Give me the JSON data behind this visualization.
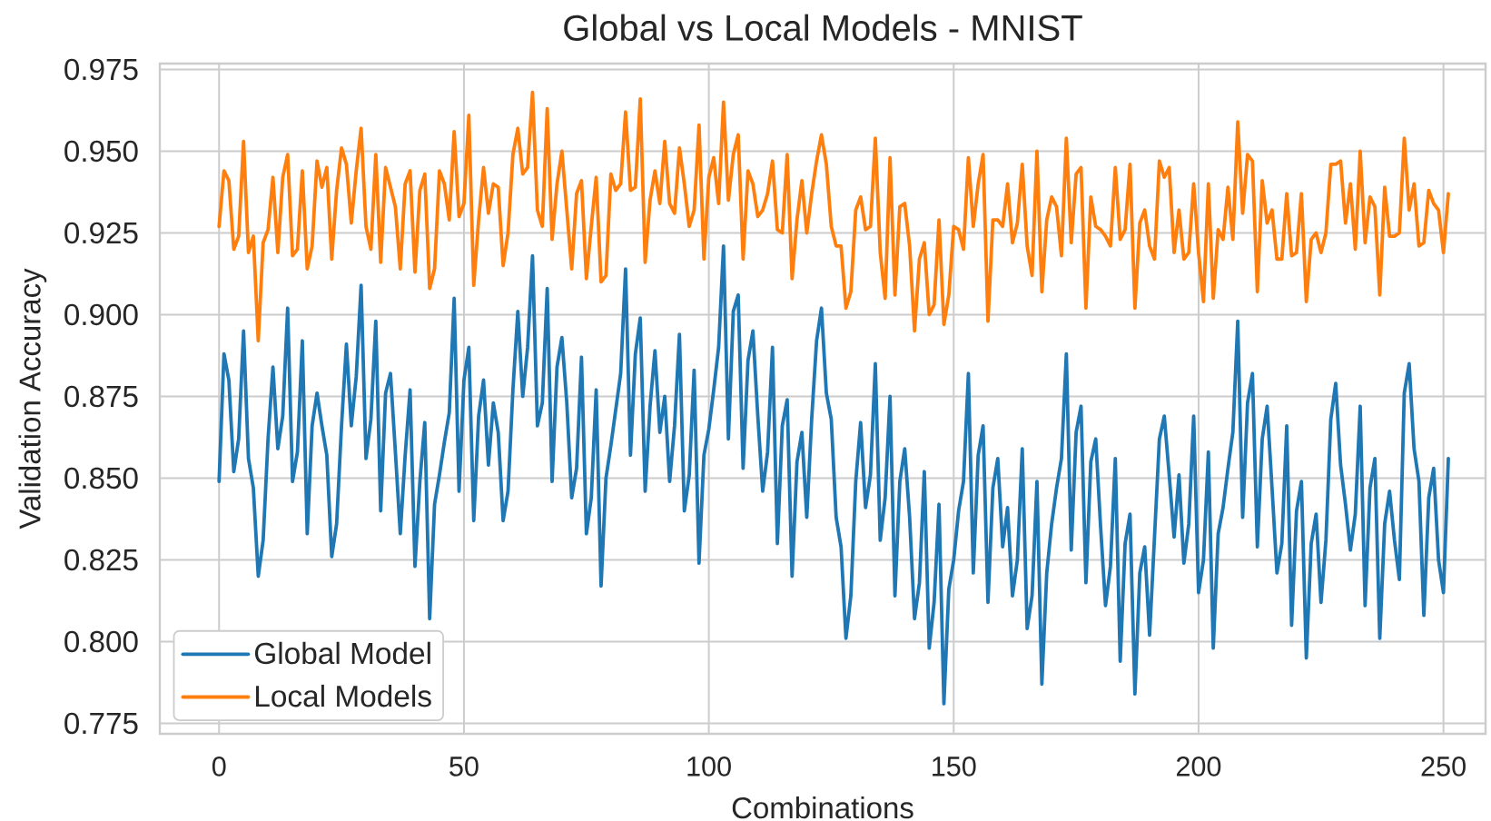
{
  "chart_data": {
    "type": "line",
    "title": "Global vs Local Models - MNIST",
    "xlabel": "Combinations",
    "ylabel": "Validation Accuracy",
    "x": [
      0,
      1,
      2,
      3,
      4,
      5,
      6,
      7,
      8,
      9,
      10,
      11,
      12,
      13,
      14,
      15,
      16,
      17,
      18,
      19,
      20,
      21,
      22,
      23,
      24,
      25,
      26,
      27,
      28,
      29,
      30,
      31,
      32,
      33,
      34,
      35,
      36,
      37,
      38,
      39,
      40,
      41,
      42,
      43,
      44,
      45,
      46,
      47,
      48,
      49,
      50,
      51,
      52,
      53,
      54,
      55,
      56,
      57,
      58,
      59,
      60,
      61,
      62,
      63,
      64,
      65,
      66,
      67,
      68,
      69,
      70,
      71,
      72,
      73,
      74,
      75,
      76,
      77,
      78,
      79,
      80,
      81,
      82,
      83,
      84,
      85,
      86,
      87,
      88,
      89,
      90,
      91,
      92,
      93,
      94,
      95,
      96,
      97,
      98,
      99,
      100,
      101,
      102,
      103,
      104,
      105,
      106,
      107,
      108,
      109,
      110,
      111,
      112,
      113,
      114,
      115,
      116,
      117,
      118,
      119,
      120,
      121,
      122,
      123,
      124,
      125,
      126,
      127,
      128,
      129,
      130,
      131,
      132,
      133,
      134,
      135,
      136,
      137,
      138,
      139,
      140,
      141,
      142,
      143,
      144,
      145,
      146,
      147,
      148,
      149,
      150,
      151,
      152,
      153,
      154,
      155,
      156,
      157,
      158,
      159,
      160,
      161,
      162,
      163,
      164,
      165,
      166,
      167,
      168,
      169,
      170,
      171,
      172,
      173,
      174,
      175,
      176,
      177,
      178,
      179,
      180,
      181,
      182,
      183,
      184,
      185,
      186,
      187,
      188,
      189,
      190,
      191,
      192,
      193,
      194,
      195,
      196,
      197,
      198,
      199,
      200,
      201,
      202,
      203,
      204,
      205,
      206,
      207,
      208,
      209,
      210,
      211,
      212,
      213,
      214,
      215,
      216,
      217,
      218,
      219,
      220,
      221,
      222,
      223,
      224,
      225,
      226,
      227,
      228,
      229,
      230,
      231,
      232,
      233,
      234,
      235,
      236,
      237,
      238,
      239,
      240,
      241,
      242,
      243,
      244,
      245,
      246,
      247,
      248,
      249,
      250,
      251
    ],
    "series": [
      {
        "name": "Global Model",
        "color": "#1f77b4",
        "values": [
          0.849,
          0.888,
          0.88,
          0.852,
          0.862,
          0.895,
          0.856,
          0.847,
          0.82,
          0.831,
          0.862,
          0.884,
          0.859,
          0.869,
          0.902,
          0.849,
          0.858,
          0.892,
          0.833,
          0.866,
          0.876,
          0.866,
          0.857,
          0.826,
          0.836,
          0.866,
          0.891,
          0.866,
          0.881,
          0.909,
          0.856,
          0.868,
          0.898,
          0.84,
          0.876,
          0.882,
          0.858,
          0.833,
          0.857,
          0.877,
          0.823,
          0.849,
          0.867,
          0.807,
          0.842,
          0.851,
          0.861,
          0.87,
          0.905,
          0.846,
          0.88,
          0.89,
          0.837,
          0.869,
          0.88,
          0.854,
          0.873,
          0.864,
          0.837,
          0.846,
          0.877,
          0.901,
          0.875,
          0.89,
          0.918,
          0.866,
          0.873,
          0.908,
          0.849,
          0.884,
          0.893,
          0.873,
          0.844,
          0.853,
          0.887,
          0.833,
          0.844,
          0.877,
          0.817,
          0.85,
          0.86,
          0.871,
          0.882,
          0.914,
          0.857,
          0.888,
          0.899,
          0.846,
          0.872,
          0.889,
          0.864,
          0.875,
          0.849,
          0.866,
          0.894,
          0.84,
          0.851,
          0.883,
          0.824,
          0.857,
          0.865,
          0.877,
          0.89,
          0.921,
          0.862,
          0.901,
          0.906,
          0.853,
          0.886,
          0.895,
          0.869,
          0.846,
          0.858,
          0.89,
          0.83,
          0.866,
          0.874,
          0.82,
          0.855,
          0.864,
          0.838,
          0.868,
          0.892,
          0.902,
          0.876,
          0.868,
          0.838,
          0.829,
          0.801,
          0.814,
          0.849,
          0.867,
          0.841,
          0.851,
          0.885,
          0.831,
          0.844,
          0.875,
          0.814,
          0.849,
          0.859,
          0.838,
          0.807,
          0.818,
          0.852,
          0.798,
          0.812,
          0.842,
          0.781,
          0.816,
          0.825,
          0.84,
          0.849,
          0.882,
          0.821,
          0.857,
          0.866,
          0.812,
          0.847,
          0.856,
          0.829,
          0.841,
          0.814,
          0.825,
          0.859,
          0.804,
          0.814,
          0.849,
          0.787,
          0.821,
          0.836,
          0.847,
          0.856,
          0.888,
          0.828,
          0.864,
          0.872,
          0.818,
          0.855,
          0.862,
          0.835,
          0.811,
          0.823,
          0.856,
          0.794,
          0.83,
          0.839,
          0.784,
          0.821,
          0.829,
          0.802,
          0.832,
          0.862,
          0.869,
          0.851,
          0.832,
          0.851,
          0.824,
          0.836,
          0.869,
          0.815,
          0.825,
          0.858,
          0.798,
          0.833,
          0.841,
          0.853,
          0.864,
          0.898,
          0.838,
          0.873,
          0.882,
          0.829,
          0.862,
          0.872,
          0.847,
          0.821,
          0.83,
          0.866,
          0.805,
          0.84,
          0.849,
          0.795,
          0.83,
          0.839,
          0.812,
          0.831,
          0.868,
          0.879,
          0.854,
          0.842,
          0.828,
          0.839,
          0.872,
          0.811,
          0.847,
          0.856,
          0.801,
          0.836,
          0.846,
          0.831,
          0.819,
          0.876,
          0.885,
          0.859,
          0.849,
          0.808,
          0.844,
          0.853,
          0.825,
          0.815,
          0.856
        ]
      },
      {
        "name": "Local Models",
        "color": "#ff7f0e",
        "values": [
          0.927,
          0.944,
          0.941,
          0.92,
          0.924,
          0.953,
          0.919,
          0.924,
          0.892,
          0.922,
          0.926,
          0.942,
          0.919,
          0.942,
          0.949,
          0.918,
          0.92,
          0.944,
          0.914,
          0.921,
          0.947,
          0.939,
          0.945,
          0.917,
          0.938,
          0.951,
          0.946,
          0.928,
          0.944,
          0.957,
          0.927,
          0.92,
          0.949,
          0.916,
          0.945,
          0.939,
          0.933,
          0.914,
          0.94,
          0.944,
          0.913,
          0.938,
          0.943,
          0.908,
          0.914,
          0.944,
          0.94,
          0.929,
          0.956,
          0.93,
          0.934,
          0.961,
          0.909,
          0.929,
          0.945,
          0.931,
          0.94,
          0.939,
          0.915,
          0.925,
          0.949,
          0.957,
          0.943,
          0.945,
          0.968,
          0.932,
          0.927,
          0.963,
          0.923,
          0.94,
          0.95,
          0.932,
          0.914,
          0.937,
          0.941,
          0.911,
          0.927,
          0.942,
          0.91,
          0.912,
          0.943,
          0.938,
          0.94,
          0.962,
          0.938,
          0.939,
          0.966,
          0.916,
          0.935,
          0.944,
          0.934,
          0.953,
          0.934,
          0.931,
          0.951,
          0.94,
          0.927,
          0.932,
          0.958,
          0.917,
          0.942,
          0.948,
          0.934,
          0.965,
          0.935,
          0.949,
          0.955,
          0.917,
          0.944,
          0.94,
          0.93,
          0.932,
          0.937,
          0.947,
          0.926,
          0.925,
          0.949,
          0.911,
          0.929,
          0.941,
          0.925,
          0.937,
          0.947,
          0.955,
          0.946,
          0.927,
          0.921,
          0.921,
          0.902,
          0.907,
          0.932,
          0.936,
          0.926,
          0.927,
          0.954,
          0.919,
          0.905,
          0.948,
          0.906,
          0.933,
          0.934,
          0.921,
          0.895,
          0.917,
          0.922,
          0.9,
          0.903,
          0.929,
          0.897,
          0.906,
          0.927,
          0.926,
          0.92,
          0.948,
          0.927,
          0.94,
          0.949,
          0.898,
          0.929,
          0.929,
          0.927,
          0.94,
          0.922,
          0.928,
          0.946,
          0.921,
          0.912,
          0.95,
          0.907,
          0.929,
          0.936,
          0.933,
          0.918,
          0.954,
          0.922,
          0.943,
          0.945,
          0.902,
          0.936,
          0.927,
          0.926,
          0.924,
          0.921,
          0.945,
          0.923,
          0.926,
          0.946,
          0.902,
          0.928,
          0.932,
          0.921,
          0.917,
          0.947,
          0.942,
          0.945,
          0.919,
          0.932,
          0.917,
          0.919,
          0.94,
          0.919,
          0.904,
          0.94,
          0.905,
          0.926,
          0.923,
          0.939,
          0.923,
          0.959,
          0.931,
          0.949,
          0.947,
          0.907,
          0.941,
          0.928,
          0.932,
          0.917,
          0.917,
          0.937,
          0.918,
          0.919,
          0.937,
          0.904,
          0.923,
          0.925,
          0.919,
          0.925,
          0.946,
          0.946,
          0.947,
          0.928,
          0.94,
          0.92,
          0.95,
          0.922,
          0.936,
          0.933,
          0.906,
          0.939,
          0.924,
          0.924,
          0.925,
          0.954,
          0.932,
          0.94,
          0.921,
          0.922,
          0.938,
          0.934,
          0.932,
          0.919,
          0.937
        ]
      }
    ],
    "xlim": [
      -12.1,
      258.6
    ],
    "ylim": [
      0.7718,
      0.9768
    ],
    "xticks": [
      0,
      50,
      100,
      150,
      200,
      250
    ],
    "yticks": [
      0.775,
      {
        "value": 0.8,
        "label": "0.800"
      },
      0.825,
      {
        "value": 0.85,
        "label": "0.850"
      },
      0.875,
      {
        "value": 0.9,
        "label": "0.900"
      },
      0.925,
      {
        "value": 0.95,
        "label": "0.950"
      },
      0.975
    ],
    "grid": true,
    "legend": "bottom left"
  }
}
